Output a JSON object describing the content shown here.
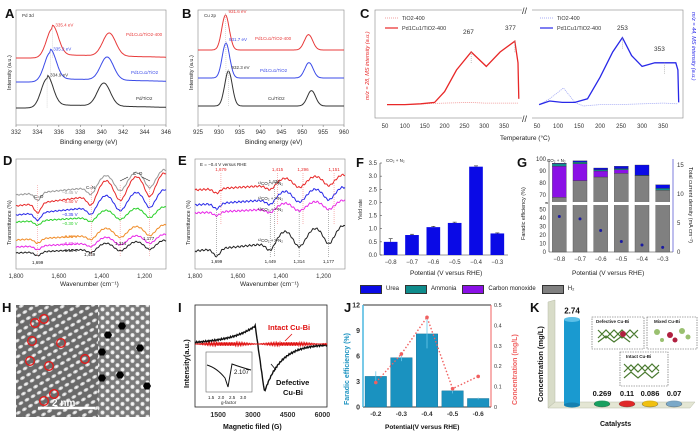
{
  "chart_data": [
    {
      "panel": "A",
      "type": "line",
      "annotation": "Pd 3d",
      "xlabel": "Binding energy (eV)",
      "ylabel": "Intensity (a.u.)",
      "xlim": [
        332,
        346
      ],
      "xticks": [
        332,
        334,
        336,
        338,
        340,
        342,
        344,
        346
      ],
      "series": [
        {
          "name": "Pd1Cu1/TiO2-400",
          "color": "#e83b3b",
          "peak_label": "335.4 eV",
          "peaks": [
            335.4,
            340.7
          ]
        },
        {
          "name": "Pd1Cu1/TiO2",
          "color": "#3b4be8",
          "peak_label": "335.2 eV",
          "peaks": [
            335.2,
            340.5
          ]
        },
        {
          "name": "Pd/TiO2",
          "color": "#333333",
          "peak_label": "334.9 eV",
          "peaks": [
            334.9,
            340.2
          ]
        }
      ]
    },
    {
      "panel": "B",
      "type": "line",
      "annotation": "Cu 2p",
      "xlabel": "Binding energy (eV)",
      "ylabel": "Intensity (a.u.)",
      "xlim": [
        925,
        960
      ],
      "xticks": [
        925,
        930,
        935,
        940,
        945,
        950,
        955,
        960
      ],
      "series": [
        {
          "name": "Pd1Cu1/TiO2-400",
          "color": "#e83b3b",
          "peak_label": "931.6 eV",
          "peaks": [
            931.6,
            951.5
          ]
        },
        {
          "name": "Pd1Cu1/TiO2",
          "color": "#3b4be8",
          "peak_label": "931.7 eV",
          "peaks": [
            931.7,
            951.6
          ]
        },
        {
          "name": "Cu/TiO2",
          "color": "#333333",
          "peak_label": "932.3 eV",
          "peaks": [
            932.3,
            952.2
          ]
        }
      ]
    },
    {
      "panel": "C",
      "type": "line",
      "xlabel": "Temperature (°C)",
      "ylabel_left": "m/z = 28, MS intensity (a.u.)",
      "ylabel_right": "m/z = 44, MS intensity (a.u.)",
      "xticks": [
        50,
        100,
        150,
        200,
        250,
        300,
        350
      ],
      "left": {
        "legend": [
          "TiO2-400",
          "Pd1Cu1/TiO2-400"
        ],
        "peak_labels": [
          "267",
          "377"
        ],
        "series": [
          {
            "name": "TiO2-400",
            "color": "#f2a0a0",
            "x": [
              55,
              100,
              150,
              200,
              265,
              300,
              350,
              385
            ],
            "y": [
              0.02,
              0.02,
              0.03,
              0.04,
              0.05,
              0.04,
              0.04,
              0.04
            ]
          },
          {
            "name": "Pd1Cu1/TiO2-400",
            "color": "#e82828",
            "x": [
              55,
              100,
              140,
              175,
              200,
              230,
              267,
              305,
              340,
              377,
              385,
              387
            ],
            "y": [
              0.02,
              0.02,
              0.03,
              0.05,
              0.2,
              0.5,
              0.75,
              0.55,
              0.75,
              0.9,
              0.6,
              0.1
            ]
          }
        ]
      },
      "right": {
        "legend": [
          "TiO2-400",
          "Pd1Cu1/TiO2-400"
        ],
        "peak_labels": [
          "253",
          "353"
        ],
        "series": [
          {
            "name": "TiO2-400",
            "color": "#a8aef5",
            "x": [
              55,
              80,
              113,
              140,
              160,
              200,
              250,
              300,
              350,
              385
            ],
            "y": [
              0.02,
              0.1,
              0.25,
              0.05,
              0.0,
              0.02,
              0.02,
              0.03,
              0.04,
              0.03
            ]
          },
          {
            "name": "Pd1Cu1/TiO2-400",
            "color": "#2828e8",
            "x": [
              55,
              80,
              110,
              140,
              170,
              200,
              230,
              253,
              275,
              300,
              330,
              353,
              380,
              385,
              387
            ],
            "y": [
              0.02,
              0.07,
              0.05,
              0.05,
              0.1,
              0.4,
              0.75,
              0.95,
              0.7,
              0.55,
              0.6,
              0.6,
              0.6,
              0.5,
              0.05
            ]
          }
        ]
      }
    },
    {
      "panel": "D",
      "type": "line",
      "xlabel": "Wavenumber (cm⁻¹)",
      "ylabel": "Transmittance (%)",
      "xlim": [
        1800,
        1100
      ],
      "xticks": [
        "1,800",
        "1,600",
        "1,400",
        "1,200"
      ],
      "annotations": [
        "C=O",
        "C=N",
        "C−O"
      ],
      "peak_labels": [
        "1,699",
        "1,449",
        "1,314",
        "1,177"
      ],
      "series": [
        {
          "name": "−0.45 V",
          "color": "#999999"
        },
        {
          "name": "−0.40 V",
          "color": "#e82828"
        },
        {
          "name": "−0.35 V",
          "color": "#2828e8"
        },
        {
          "name": "−0.30 V",
          "color": "#28d028"
        },
        {
          "name": "−0.25 V",
          "color": "#f08c28"
        },
        {
          "name": "−0.20 V",
          "color": "#e828e8"
        },
        {
          "name": "−0.15 V",
          "color": "#222222"
        }
      ]
    },
    {
      "panel": "E",
      "type": "line",
      "annotation": "E = −0.4 V versus RHE",
      "xlabel": "Wavenumber (cm⁻¹)",
      "ylabel": "Transmittance (%)",
      "xlim": [
        1800,
        1100
      ],
      "xticks": [
        "1,800",
        "1,600",
        "1,400",
        "1,200"
      ],
      "red_peak_labels": [
        "1,679",
        "1,415",
        "1,296",
        "1,151"
      ],
      "black_peak_labels": [
        "1,699",
        "1,430",
        "1,449",
        "1,314",
        "1,177"
      ],
      "series": [
        {
          "name": "¹³CO₂ + ¹⁵N₂",
          "color": "#e82828"
        },
        {
          "name": "¹²CO₂ + ¹⁵N₂",
          "color": "#2828e8"
        },
        {
          "name": "¹³CO₂ + ¹⁴N₂",
          "color": "#e828e8"
        },
        {
          "name": "¹²CO₂ + ¹⁴N₂",
          "color": "#222222"
        }
      ]
    },
    {
      "panel": "F",
      "type": "bar",
      "annotation": "CO₂ + N₂",
      "xlabel": "Potential (V versus RHE)",
      "ylabel": "Yield rate",
      "categories": [
        "−0.8",
        "−0.7",
        "−0.6",
        "−0.5",
        "−0.4",
        "−0.3"
      ],
      "values": [
        0.5,
        0.76,
        1.06,
        1.22,
        3.36,
        0.82
      ],
      "errors": [
        0.12,
        0.03,
        0.03,
        0.03,
        0.03,
        0.02
      ],
      "ylim": [
        0,
        3.5
      ],
      "yticks": [
        "0.0",
        "0.5",
        "1.0",
        "1.5",
        "2.0",
        "2.5",
        "3.0",
        "3.5"
      ],
      "color": "#0a0ae6"
    },
    {
      "panel": "G",
      "type": "bar",
      "annotation": "CO₂ + N₂",
      "xlabel": "Potential (V versus RHE)",
      "ylabel": "Faradic efficiency (%)",
      "ylabel_right": "Total current density (mA cm⁻²)",
      "categories": [
        "−0.8",
        "−0.7",
        "−0.6",
        "−0.5",
        "−0.4",
        "−0.3"
      ],
      "series": [
        {
          "name": "H₂",
          "color": "#808080",
          "values": [
            68,
            82,
            85,
            88,
            86,
            74
          ]
        },
        {
          "name": "Carbon monoxide",
          "color": "#8a10e6",
          "values": [
            26,
            14,
            5,
            3,
            0,
            0
          ]
        },
        {
          "name": "Ammonia",
          "color": "#0f8c8c",
          "values": [
            2,
            1.5,
            1,
            1,
            0.5,
            1.5
          ]
        },
        {
          "name": "Urea",
          "color": "#0a0ae6",
          "values": [
            0.5,
            1,
            1.5,
            2,
            8.5,
            3
          ]
        }
      ],
      "current_density": [
        6.1,
        5.7,
        3.7,
        1.8,
        1.2,
        0.8
      ],
      "yticks_left_lower": [
        "0",
        "10",
        "20",
        "30",
        "40",
        "50"
      ],
      "yticks_left_upper": [
        "70",
        "80",
        "90",
        "100"
      ],
      "yticks_right": [
        "0",
        "5",
        "10",
        "15"
      ]
    },
    {
      "panel": "I",
      "type": "line",
      "xlabel": "Magnetic filed (G)",
      "ylabel": "Intensity(a.u.)",
      "xticks": [
        "1500",
        "3000",
        "4500",
        "6000"
      ],
      "series": [
        {
          "name": "Intact Cu-Bi",
          "color": "#e01010"
        },
        {
          "name": "Defective Cu-Bi",
          "color": "#111111"
        }
      ],
      "inset": {
        "xlabel": "g-factor",
        "xticks": [
          "1.5",
          "2.0",
          "2.5",
          "3.0"
        ],
        "annotation": "2.107"
      }
    },
    {
      "panel": "J",
      "type": "bar",
      "xlabel": "Potential(V versus RHE)",
      "ylabel": "Faradic efficiency (%)",
      "ylabel_right": "Concentration (mg/L)",
      "categories": [
        "-0.2",
        "-0.3",
        "-0.4",
        "-0.5",
        "-0.6"
      ],
      "values": [
        3.6,
        5.8,
        8.6,
        1.9,
        1.0
      ],
      "errors": [
        0.6,
        0.4,
        1.7,
        0.3,
        0.1
      ],
      "ylim": [
        0,
        12
      ],
      "yticks": [
        "0",
        "3",
        "6",
        "9",
        "12"
      ],
      "concentration": [
        0.12,
        0.26,
        0.44,
        0.09,
        0.15
      ],
      "ylim_right": [
        0,
        0.5
      ],
      "yticks_right": [
        "0",
        "0.1",
        "0.2",
        "0.3",
        "0.4",
        "0.5"
      ],
      "bar_color": "#1a92c0",
      "line_color": "#f06060"
    },
    {
      "panel": "K",
      "type": "bar",
      "xlabel": "Catalysts",
      "ylabel": "Concentration (mg/L)",
      "values": [
        2.74,
        0.269,
        0.11,
        0.086,
        0.07
      ],
      "value_labels": [
        "2.74",
        "0.269",
        "0.11",
        "0.086",
        "0.07"
      ],
      "colors": [
        "#1a9ad0",
        "#18a060",
        "#e02828",
        "#f0c010",
        "#7aa8c8"
      ],
      "insets": [
        "Defective Cu-Bi",
        "Mixed Cu-Bi",
        "Intact Cu-Bi"
      ]
    }
  ],
  "panels": {
    "A": "A",
    "B": "B",
    "C": "C",
    "D": "D",
    "E": "E",
    "F": "F",
    "G": "G",
    "H": "H",
    "I": "I",
    "J": "J",
    "K": "K"
  },
  "panel_h": {
    "scale_bar": "2 nm"
  },
  "legend_fg": [
    {
      "name": "Urea",
      "color": "#0a0ae6"
    },
    {
      "name": "Ammonia",
      "color": "#0f8c8c"
    },
    {
      "name": "Carbon monoxide",
      "color": "#8a10e6"
    },
    {
      "name": "H₂",
      "color": "#808080"
    }
  ]
}
